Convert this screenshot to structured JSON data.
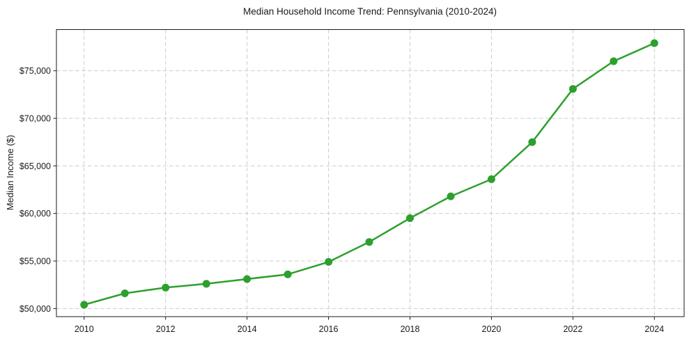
{
  "chart_data": {
    "type": "line",
    "title": "Median Household Income Trend: Pennsylvania (2010-2024)",
    "xlabel": "",
    "ylabel": "Median Income ($)",
    "years": [
      2010,
      2011,
      2012,
      2013,
      2014,
      2015,
      2016,
      2017,
      2018,
      2019,
      2020,
      2021,
      2022,
      2023,
      2024
    ],
    "values": [
      50400,
      51600,
      52200,
      52600,
      53100,
      53600,
      54900,
      57000,
      59500,
      61800,
      63600,
      67500,
      73100,
      76000,
      77900
    ],
    "x_ticks": [
      2010,
      2012,
      2014,
      2016,
      2018,
      2020,
      2022,
      2024
    ],
    "y_ticks": [
      50000,
      55000,
      60000,
      65000,
      70000,
      75000
    ],
    "y_tick_prefix": "$",
    "xlim": [
      2009.32,
      2024.73
    ],
    "ylim": [
      49150,
      79330
    ],
    "grid": true,
    "grid_style": "dashed",
    "legend": false,
    "marker": "circle",
    "line_color": "#2ca02c"
  },
  "style": {
    "accent_green": "#2ca02c",
    "grid_color": "#cccccc",
    "spine_color": "#1a1a1a",
    "text_color": "#1a1a1a",
    "background": "#ffffff"
  }
}
